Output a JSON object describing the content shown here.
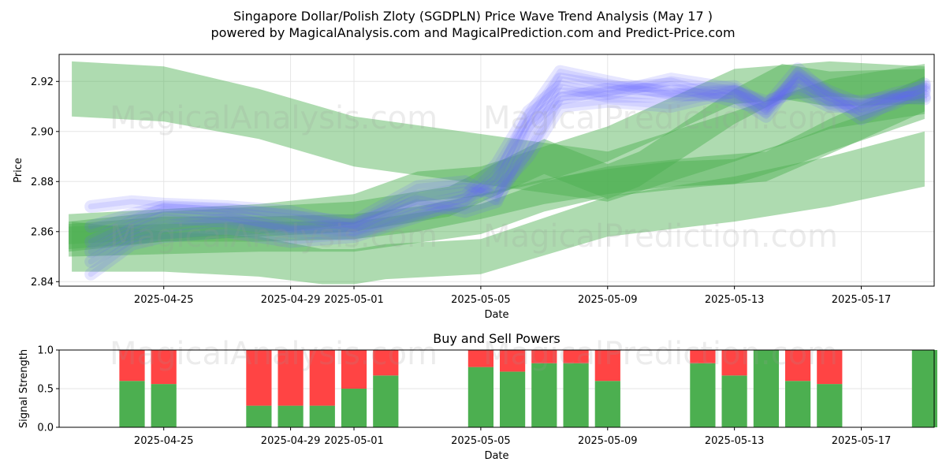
{
  "header": {
    "title_line1": "Singapore Dollar/Polish Zloty (SGDPLN) Price Wave Trend Analysis (May 17 )",
    "title_line2": "powered by MagicalAnalysis.com and MagicalPrediction.com and Predict-Price.com"
  },
  "watermarks": {
    "left": "MagicalAnalysis.com",
    "right": "MagicalPrediction.com"
  },
  "colors": {
    "green": "#4caf50",
    "red": "#ff4444",
    "blue": "#6666ff",
    "band_green": "#4caf50"
  },
  "chart_data": [
    {
      "type": "area",
      "title": "Singapore Dollar/Polish Zloty (SGDPLN) Price Wave Trend Analysis (May 17 )",
      "xlabel": "Date",
      "ylabel": "Price",
      "x_range_days": [
        -3.3,
        24.3
      ],
      "ylim": [
        2.8382,
        2.9308
      ],
      "yticks": [
        2.84,
        2.86,
        2.88,
        2.9,
        2.92
      ],
      "ytick_labels": [
        "2.84",
        "2.86",
        "2.88",
        "2.90",
        "2.92"
      ],
      "xticks_days": [
        0,
        4,
        6,
        10,
        14,
        18,
        22
      ],
      "xtick_labels": [
        "2025-04-25",
        "2025-04-29",
        "2025-05-01",
        "2025-05-05",
        "2025-05-09",
        "2025-05-13",
        "2025-05-17"
      ],
      "grid": true,
      "green_bands": [
        {
          "name": "wide-upper",
          "x": [
            -2.9,
            0,
            3,
            6,
            10,
            14,
            18,
            21,
            24
          ],
          "center": [
            2.917,
            2.915,
            2.907,
            2.896,
            2.889,
            2.882,
            2.898,
            2.911,
            2.917
          ],
          "halfwidth": [
            0.011,
            0.011,
            0.01,
            0.01,
            0.01,
            0.01,
            0.01,
            0.01,
            0.01
          ]
        },
        {
          "name": "wide-lower",
          "x": [
            -2.9,
            0,
            3,
            5,
            6,
            7,
            10,
            14,
            18,
            21,
            24
          ],
          "center": [
            2.854,
            2.852,
            2.85,
            2.846,
            2.846,
            2.848,
            2.85,
            2.866,
            2.873,
            2.88,
            2.889
          ],
          "halfwidth": [
            0.01,
            0.008,
            0.008,
            0.007,
            0.007,
            0.007,
            0.007,
            0.008,
            0.009,
            0.01,
            0.011
          ]
        },
        {
          "name": "mid-rising",
          "x": [
            -3.0,
            0,
            3,
            6,
            8,
            10,
            12,
            14,
            18,
            21,
            24
          ],
          "center": [
            2.861,
            2.863,
            2.865,
            2.869,
            2.878,
            2.88,
            2.887,
            2.895,
            2.918,
            2.921,
            2.919
          ],
          "halfwidth": [
            0.006,
            0.006,
            0.006,
            0.006,
            0.006,
            0.006,
            0.007,
            0.007,
            0.007,
            0.007,
            0.007
          ]
        },
        {
          "name": "low-rising",
          "x": [
            -3.0,
            0,
            3,
            6,
            10,
            12,
            14,
            17,
            19,
            21,
            24
          ],
          "center": [
            2.856,
            2.857,
            2.858,
            2.858,
            2.865,
            2.874,
            2.88,
            2.884,
            2.886,
            2.898,
            2.915
          ],
          "halfwidth": [
            0.006,
            0.006,
            0.006,
            0.006,
            0.006,
            0.006,
            0.006,
            0.006,
            0.006,
            0.007,
            0.007
          ]
        },
        {
          "name": "steep-rise",
          "x": [
            -3.0,
            0,
            3,
            6,
            9,
            12,
            14,
            15,
            18,
            19.5,
            21,
            24
          ],
          "center": [
            2.858,
            2.862,
            2.864,
            2.866,
            2.872,
            2.89,
            2.88,
            2.885,
            2.91,
            2.92,
            2.917,
            2.918
          ],
          "halfwidth": [
            0.006,
            0.006,
            0.006,
            0.006,
            0.006,
            0.007,
            0.007,
            0.007,
            0.007,
            0.007,
            0.007,
            0.007
          ]
        },
        {
          "name": "flat-lower",
          "x": [
            -3.0,
            0,
            3,
            6,
            8,
            10,
            12,
            14,
            16,
            18,
            20,
            21,
            24
          ],
          "center": [
            2.858,
            2.861,
            2.861,
            2.862,
            2.865,
            2.87,
            2.876,
            2.88,
            2.883,
            2.884,
            2.892,
            2.897,
            2.91
          ],
          "halfwidth": [
            0.005,
            0.005,
            0.005,
            0.005,
            0.005,
            0.005,
            0.005,
            0.005,
            0.005,
            0.005,
            0.005,
            0.005,
            0.005
          ]
        }
      ],
      "blue_waves": [
        {
          "x": [
            -2.3,
            -1,
            0,
            2,
            4,
            6,
            8,
            9.5,
            10.5,
            11.5,
            12.5,
            14,
            16,
            18,
            19,
            20,
            21,
            22,
            23,
            24
          ],
          "y": [
            2.856,
            2.864,
            2.869,
            2.867,
            2.862,
            2.861,
            2.87,
            2.874,
            2.887,
            2.908,
            2.918,
            2.914,
            2.914,
            2.916,
            2.912,
            2.916,
            2.91,
            2.91,
            2.913,
            2.914
          ]
        },
        {
          "x": [
            -2.3,
            -1,
            0,
            2,
            4,
            6,
            8,
            9.5,
            10.5,
            11.5,
            12.5,
            14,
            16,
            18,
            19,
            20,
            21,
            22,
            23,
            24
          ],
          "y": [
            2.852,
            2.861,
            2.866,
            2.864,
            2.86,
            2.859,
            2.867,
            2.871,
            2.882,
            2.903,
            2.913,
            2.917,
            2.919,
            2.912,
            2.909,
            2.922,
            2.915,
            2.907,
            2.911,
            2.917
          ]
        },
        {
          "x": [
            -2.3,
            -1,
            0,
            2,
            4,
            6,
            8,
            9.5,
            10.5,
            11.5,
            12.5,
            14,
            16,
            18,
            19,
            20,
            21,
            22,
            23,
            24
          ],
          "y": [
            2.848,
            2.858,
            2.862,
            2.865,
            2.861,
            2.863,
            2.872,
            2.868,
            2.872,
            2.9,
            2.921,
            2.918,
            2.916,
            2.918,
            2.91,
            2.925,
            2.914,
            2.905,
            2.912,
            2.919
          ]
        },
        {
          "x": [
            -2.3,
            -1,
            0,
            2,
            4,
            6,
            8,
            9.5,
            10.5,
            11.5,
            12.5,
            14,
            16,
            18,
            19,
            20,
            21,
            22,
            23,
            24
          ],
          "y": [
            2.862,
            2.867,
            2.87,
            2.869,
            2.866,
            2.864,
            2.878,
            2.88,
            2.873,
            2.893,
            2.915,
            2.915,
            2.921,
            2.917,
            2.908,
            2.921,
            2.911,
            2.909,
            2.914,
            2.916
          ]
        },
        {
          "x": [
            -2.3,
            -1,
            0,
            2,
            4,
            6,
            8,
            9.5,
            10.5,
            11.5,
            12.5,
            14,
            16,
            18,
            19,
            20,
            21,
            22,
            23,
            24
          ],
          "y": [
            2.843,
            2.855,
            2.858,
            2.86,
            2.856,
            2.858,
            2.866,
            2.873,
            2.88,
            2.906,
            2.924,
            2.92,
            2.915,
            2.914,
            2.906,
            2.923,
            2.916,
            2.911,
            2.915,
            2.918
          ]
        },
        {
          "x": [
            -2.3,
            -1,
            0,
            2,
            4,
            6,
            8,
            9.5,
            10.5,
            11.5,
            12.5,
            14,
            16,
            18,
            19,
            20,
            21,
            22,
            23,
            24
          ],
          "y": [
            2.87,
            2.872,
            2.871,
            2.87,
            2.868,
            2.862,
            2.874,
            2.877,
            2.876,
            2.89,
            2.91,
            2.912,
            2.91,
            2.916,
            2.911,
            2.919,
            2.913,
            2.912,
            2.914,
            2.913
          ]
        }
      ]
    },
    {
      "type": "bar",
      "title": "Buy and Sell Powers",
      "xlabel": "Date",
      "ylabel": "Signal Strength",
      "x_range_days": [
        -3.3,
        24.3
      ],
      "ylim": [
        0,
        1
      ],
      "yticks": [
        0.0,
        0.5,
        1.0
      ],
      "ytick_labels": [
        "0.0",
        "0.5",
        "1.0"
      ],
      "xticks_days": [
        0,
        4,
        6,
        10,
        14,
        18,
        22
      ],
      "xtick_labels": [
        "2025-04-25",
        "2025-04-29",
        "2025-05-01",
        "2025-05-05",
        "2025-05-09",
        "2025-05-13",
        "2025-05-17"
      ],
      "series": [
        {
          "name": "Buy",
          "color": "#4caf50"
        },
        {
          "name": "Sell",
          "color": "#ff4444"
        }
      ],
      "bars": [
        {
          "day": -1,
          "buy": 0.6
        },
        {
          "day": 0,
          "buy": 0.56
        },
        {
          "day": 3,
          "buy": 0.28
        },
        {
          "day": 4,
          "buy": 0.28
        },
        {
          "day": 5,
          "buy": 0.28
        },
        {
          "day": 6,
          "buy": 0.5
        },
        {
          "day": 7,
          "buy": 0.67
        },
        {
          "day": 10,
          "buy": 0.78
        },
        {
          "day": 11,
          "buy": 0.72
        },
        {
          "day": 12,
          "buy": 0.83
        },
        {
          "day": 13,
          "buy": 0.83
        },
        {
          "day": 14,
          "buy": 0.6
        },
        {
          "day": 17,
          "buy": 0.83
        },
        {
          "day": 18,
          "buy": 0.67
        },
        {
          "day": 19,
          "buy": 1.0
        },
        {
          "day": 20,
          "buy": 0.6
        },
        {
          "day": 21,
          "buy": 0.56
        },
        {
          "day": 24,
          "buy": 1.0
        }
      ]
    }
  ]
}
